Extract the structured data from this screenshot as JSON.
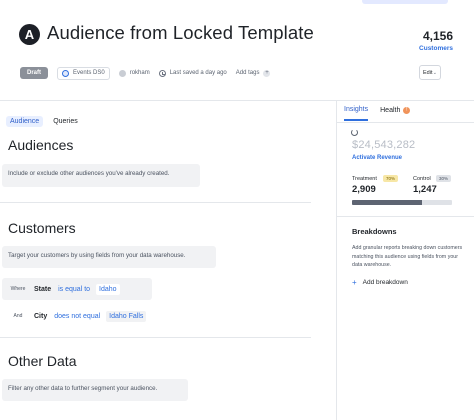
{
  "header": {
    "avatar_letter": "A",
    "title": "Audience from Locked Template",
    "count": "4,156",
    "count_label": "Customers"
  },
  "meta": {
    "status": "Draft",
    "events": "Events DS0",
    "owner": "rokham",
    "last_saved": "Last saved a day ago",
    "add_tags": "Add tags",
    "add_tags_plus": "+",
    "edit_label": "Edit",
    "edit_chevron": "⌄"
  },
  "left": {
    "tabs": [
      {
        "label": "Audience",
        "active": true
      },
      {
        "label": "Queries",
        "active": false
      }
    ],
    "sections": {
      "audiences": {
        "title": "Audiences",
        "description": "Include or exclude other audiences you've already created."
      },
      "customers": {
        "title": "Customers",
        "description": "Target your customers by using fields from your data warehouse.",
        "conditions": [
          {
            "conj": "Where",
            "field": "State",
            "operator": "is equal to",
            "value": "Idaho"
          },
          {
            "conj": "And",
            "field": "City",
            "operator": "does not equal",
            "value": "Idaho Falls"
          }
        ]
      },
      "other": {
        "title": "Other Data",
        "description": "Filter any other data to further segment your audience."
      }
    }
  },
  "right": {
    "tabs": [
      {
        "label": "Insights",
        "active": true
      },
      {
        "label": "Health",
        "active": false
      }
    ],
    "health_alert_icon": "!",
    "revenue": "$24,543,282",
    "revenue_label": "Activate Revenue",
    "treatment": {
      "label": "Treatment",
      "pct": "70%",
      "value": "2,909"
    },
    "control": {
      "label": "Control",
      "pct": "30%",
      "value": "1,247"
    },
    "treatment_fraction": 0.7,
    "breakdowns": {
      "title": "Breakdowns",
      "description": "Add granular reports breaking down customers matching this audience using fields from your data warehouse.",
      "add_plus": "+",
      "add_label": "Add breakdown"
    }
  }
}
